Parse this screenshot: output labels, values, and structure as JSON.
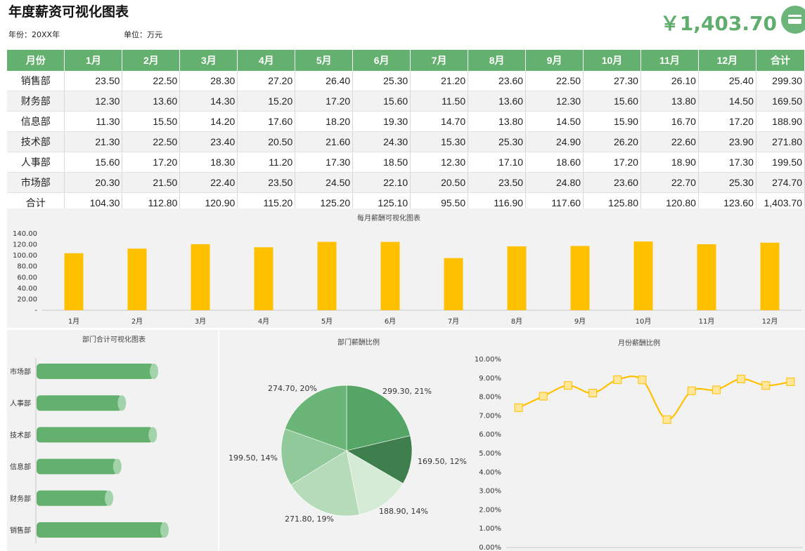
{
  "header": {
    "title": "年度薪资可视化图表",
    "year_label": "年份：20XX年",
    "unit_label": "单位：万元",
    "total_amount": "￥1,403.70",
    "icon": "card-icon",
    "accent_color": "#64b06f"
  },
  "table": {
    "columns": [
      "月份",
      "1月",
      "2月",
      "3月",
      "4月",
      "5月",
      "6月",
      "7月",
      "8月",
      "9月",
      "10月",
      "11月",
      "12月",
      "合计"
    ],
    "rows": [
      [
        "销售部",
        "23.50",
        "22.50",
        "28.30",
        "27.20",
        "26.40",
        "25.30",
        "21.20",
        "23.60",
        "22.50",
        "27.30",
        "26.10",
        "25.40",
        "299.30"
      ],
      [
        "财务部",
        "12.30",
        "13.60",
        "14.30",
        "15.20",
        "17.20",
        "15.60",
        "11.50",
        "13.60",
        "12.30",
        "15.60",
        "13.80",
        "14.50",
        "169.50"
      ],
      [
        "信息部",
        "11.30",
        "15.50",
        "14.20",
        "17.60",
        "18.20",
        "19.30",
        "14.70",
        "13.80",
        "14.50",
        "15.90",
        "16.70",
        "17.20",
        "188.90"
      ],
      [
        "技术部",
        "21.30",
        "22.50",
        "23.40",
        "20.50",
        "21.60",
        "24.30",
        "15.30",
        "25.30",
        "24.90",
        "26.20",
        "22.60",
        "23.90",
        "271.80"
      ],
      [
        "人事部",
        "15.60",
        "17.20",
        "18.30",
        "11.20",
        "17.30",
        "18.50",
        "12.30",
        "17.10",
        "18.60",
        "17.20",
        "18.90",
        "17.30",
        "199.50"
      ],
      [
        "市场部",
        "20.30",
        "21.50",
        "22.40",
        "23.50",
        "24.50",
        "22.10",
        "20.50",
        "23.50",
        "24.80",
        "23.60",
        "22.70",
        "25.30",
        "274.70"
      ],
      [
        "合计",
        "104.30",
        "112.80",
        "120.90",
        "115.20",
        "125.20",
        "125.10",
        "95.50",
        "116.90",
        "117.60",
        "125.80",
        "120.80",
        "123.60",
        "1,403.70"
      ]
    ]
  },
  "chart_data": [
    {
      "type": "bar",
      "title": "每月薪酬可视化图表",
      "categories": [
        "1月",
        "2月",
        "3月",
        "4月",
        "5月",
        "6月",
        "7月",
        "8月",
        "9月",
        "10月",
        "11月",
        "12月"
      ],
      "values": [
        104.3,
        112.8,
        120.9,
        115.2,
        125.2,
        125.1,
        95.5,
        116.9,
        117.6,
        125.8,
        120.8,
        123.6
      ],
      "ylim": [
        0,
        140
      ],
      "yticks": [
        "-",
        "20.00",
        "40.00",
        "60.00",
        "80.00",
        "100.00",
        "120.00",
        "140.00"
      ],
      "color": "#ffc000"
    },
    {
      "type": "bar",
      "orientation": "horizontal",
      "title": "部门合计可视化图表",
      "categories": [
        "市场部",
        "人事部",
        "技术部",
        "信息部",
        "财务部",
        "销售部"
      ],
      "values": [
        274.7,
        199.5,
        271.8,
        188.9,
        169.5,
        299.3
      ],
      "color": "#64b06f"
    },
    {
      "type": "pie",
      "title": "部门薪酬比例",
      "slices": [
        {
          "value": 299.3,
          "label": "299.30, 21%",
          "color": "#55a666"
        },
        {
          "value": 169.5,
          "label": "169.50, 12%",
          "color": "#3f7f4e"
        },
        {
          "value": 188.9,
          "label": "188.90, 14%",
          "color": "#d5ebd6"
        },
        {
          "value": 271.8,
          "label": "271.80, 19%",
          "color": "#b5dbb9"
        },
        {
          "value": 199.5,
          "label": "199.50, 14%",
          "color": "#92c99b"
        },
        {
          "value": 274.7,
          "label": "274.70, 20%",
          "color": "#6cb579"
        }
      ]
    },
    {
      "type": "line",
      "title": "月份薪酬比例",
      "values": [
        7.43,
        8.04,
        8.61,
        8.21,
        8.92,
        8.91,
        6.8,
        8.33,
        8.38,
        8.96,
        8.61,
        8.81
      ],
      "ylim": [
        0,
        10
      ],
      "yticks": [
        "0.00%",
        "1.00%",
        "2.00%",
        "3.00%",
        "4.00%",
        "5.00%",
        "6.00%",
        "7.00%",
        "8.00%",
        "9.00%",
        "10.00%"
      ],
      "color": "#ffc000"
    }
  ]
}
